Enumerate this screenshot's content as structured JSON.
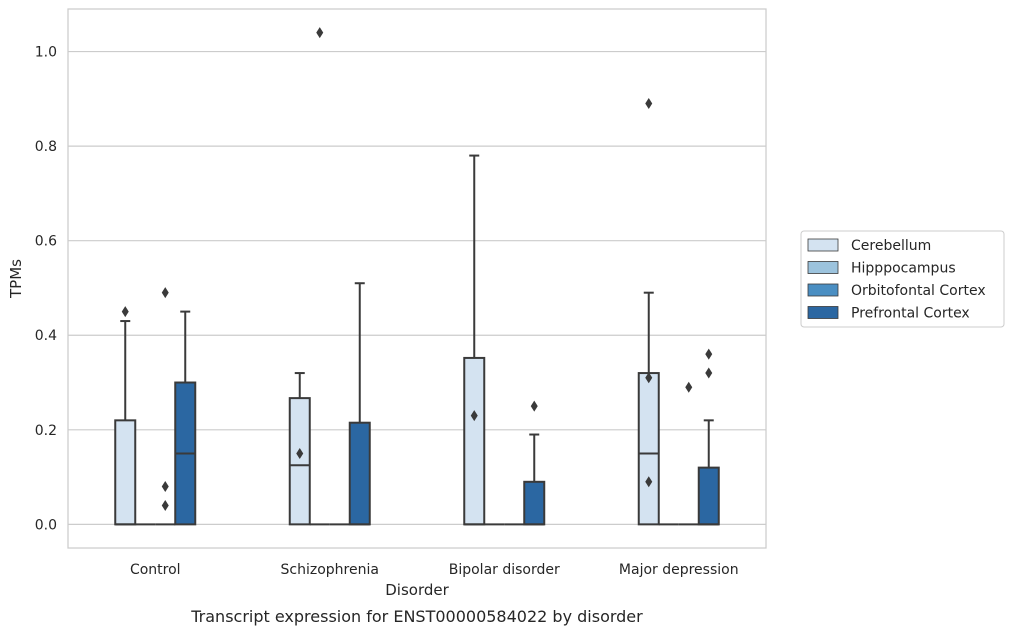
{
  "chart_data": {
    "type": "boxplot",
    "caption": "Transcript expression for ENST00000584022 by disorder",
    "xlabel": "Disorder",
    "ylabel": "TPMs",
    "categories": [
      "Control",
      "Schizophrenia",
      "Bipolar disorder",
      "Major depression"
    ],
    "ylim": [
      -0.05,
      1.09
    ],
    "yticks": [
      0.0,
      0.2,
      0.4,
      0.6,
      0.8,
      1.0
    ],
    "ytick_labels": [
      "0.0",
      "0.2",
      "0.4",
      "0.6",
      "0.8",
      "1.0"
    ],
    "grid": true,
    "legend_position": "right",
    "series": [
      {
        "name": "Cerebellum",
        "color": "#d4e3f1",
        "boxes": [
          {
            "category": "Control",
            "whislo": 0.0,
            "q1": 0.0,
            "median": 0.0,
            "q3": 0.22,
            "whishi": 0.43,
            "fliers": [
              0.45
            ]
          },
          {
            "category": "Schizophrenia",
            "whislo": 0.0,
            "q1": 0.0,
            "median": 0.125,
            "q3": 0.267,
            "whishi": 0.32,
            "fliers": [
              0.15
            ]
          },
          {
            "category": "Bipolar disorder",
            "whislo": 0.0,
            "q1": 0.0,
            "median": 0.0,
            "q3": 0.352,
            "whishi": 0.78,
            "fliers": [
              0.23
            ]
          },
          {
            "category": "Major depression",
            "whislo": 0.0,
            "q1": 0.0,
            "median": 0.15,
            "q3": 0.32,
            "whishi": 0.49,
            "fliers": [
              0.89,
              0.31,
              0.09
            ]
          }
        ]
      },
      {
        "name": "Hipppocampus",
        "color": "#9cc3dd",
        "boxes": [
          {
            "category": "Control",
            "whislo": 0.0,
            "q1": 0.0,
            "median": 0.0,
            "q3": 0.0,
            "whishi": 0.0,
            "fliers": []
          },
          {
            "category": "Schizophrenia",
            "whislo": 0.0,
            "q1": 0.0,
            "median": 0.0,
            "q3": 0.0,
            "whishi": 0.0,
            "fliers": [
              1.04
            ]
          },
          {
            "category": "Bipolar disorder",
            "whislo": 0.0,
            "q1": 0.0,
            "median": 0.0,
            "q3": 0.0,
            "whishi": 0.0,
            "fliers": []
          },
          {
            "category": "Major depression",
            "whislo": 0.0,
            "q1": 0.0,
            "median": 0.0,
            "q3": 0.0,
            "whishi": 0.0,
            "fliers": []
          }
        ]
      },
      {
        "name": "Orbitofontal Cortex",
        "color": "#4a8ec2",
        "boxes": [
          {
            "category": "Control",
            "whislo": 0.0,
            "q1": 0.0,
            "median": 0.0,
            "q3": 0.0,
            "whishi": 0.0,
            "fliers": [
              0.49,
              0.08,
              0.04
            ]
          },
          {
            "category": "Schizophrenia",
            "whislo": 0.0,
            "q1": 0.0,
            "median": 0.0,
            "q3": 0.0,
            "whishi": 0.0,
            "fliers": []
          },
          {
            "category": "Bipolar disorder",
            "whislo": 0.0,
            "q1": 0.0,
            "median": 0.0,
            "q3": 0.0,
            "whishi": 0.0,
            "fliers": []
          },
          {
            "category": "Major depression",
            "whislo": 0.0,
            "q1": 0.0,
            "median": 0.0,
            "q3": 0.0,
            "whishi": 0.0,
            "fliers": [
              0.29
            ]
          }
        ]
      },
      {
        "name": "Prefrontal Cortex",
        "color": "#2b67a2",
        "boxes": [
          {
            "category": "Control",
            "whislo": 0.0,
            "q1": 0.0,
            "median": 0.15,
            "q3": 0.3,
            "whishi": 0.45,
            "fliers": []
          },
          {
            "category": "Schizophrenia",
            "whislo": 0.0,
            "q1": 0.0,
            "median": 0.0,
            "q3": 0.215,
            "whishi": 0.51,
            "fliers": []
          },
          {
            "category": "Bipolar disorder",
            "whislo": 0.0,
            "q1": 0.0,
            "median": 0.0,
            "q3": 0.09,
            "whishi": 0.19,
            "fliers": [
              0.25
            ]
          },
          {
            "category": "Major depression",
            "whislo": 0.0,
            "q1": 0.0,
            "median": 0.0,
            "q3": 0.12,
            "whishi": 0.22,
            "fliers": [
              0.36,
              0.32
            ]
          }
        ]
      }
    ]
  }
}
